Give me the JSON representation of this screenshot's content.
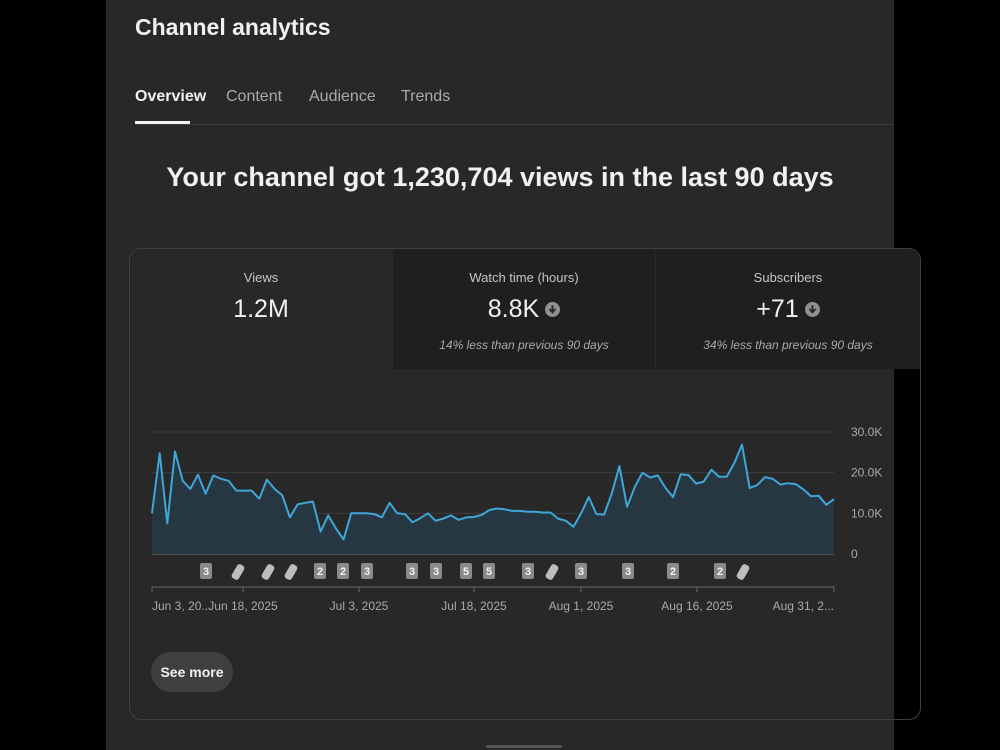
{
  "page": {
    "title": "Channel analytics"
  },
  "tabs": [
    {
      "label": "Overview",
      "active": true
    },
    {
      "label": "Content",
      "active": false
    },
    {
      "label": "Audience",
      "active": false
    },
    {
      "label": "Trends",
      "active": false
    }
  ],
  "headline": "Your channel got 1,230,704 views in the last 90 days",
  "metrics": [
    {
      "label": "Views",
      "value": "1.2M",
      "note": "",
      "trend": "none"
    },
    {
      "label": "Watch time (hours)",
      "value": "8.8K",
      "note": "14% less than previous 90 days",
      "trend": "down"
    },
    {
      "label": "Subscribers",
      "value": "+71",
      "note": "34% less than previous 90 days",
      "trend": "down"
    }
  ],
  "colors": {
    "line": "#3ea6d9",
    "area": "#263742",
    "background": "#282828"
  },
  "chart_data": {
    "type": "area",
    "title": "",
    "ylabel": "",
    "ylim": [
      0,
      30000
    ],
    "y_ticks": [
      0,
      10000,
      20000,
      30000
    ],
    "y_tick_labels": [
      "0",
      "10.0K",
      "20.0K",
      "30.0K"
    ],
    "x_tick_labels": [
      "Jun 3, 20...",
      "Jun 18, 2025",
      "Jul 3, 2025",
      "Jul 18, 2025",
      "Aug 1, 2025",
      "Aug 16, 2025",
      "Aug 31, 2..."
    ],
    "grid": true,
    "series": [
      {
        "values": [
          10000,
          24800,
          7500,
          25200,
          18000,
          16000,
          19500,
          14800,
          19300,
          18500,
          18000,
          15600,
          15600,
          15600,
          13600,
          18300,
          16000,
          14400,
          9000,
          12200,
          12600,
          12900,
          5500,
          9500,
          6300,
          3600,
          10000,
          10000,
          10000,
          9800,
          9000,
          12600,
          10000,
          9800,
          7800,
          8800,
          10000,
          8200,
          8700,
          9500,
          8400,
          9000,
          9100,
          9600,
          10800,
          11200,
          11000,
          10600,
          10600,
          10400,
          10400,
          10200,
          10200,
          8700,
          8200,
          6700,
          10000,
          14000,
          9800,
          9700,
          14900,
          21600,
          11600,
          16500,
          20000,
          18800,
          19300,
          16300,
          14000,
          19600,
          19400,
          17300,
          17800,
          20700,
          19000,
          19000,
          22400,
          26900,
          16200,
          17000,
          18900,
          18500,
          17100,
          17400,
          17200,
          15900,
          14200,
          14300,
          12100,
          13500
        ]
      }
    ],
    "annotations": [
      "3",
      "shorts",
      "shorts",
      "shorts",
      "2",
      "2",
      "3",
      "3",
      "3",
      "5",
      "5",
      "3",
      "shorts",
      "3",
      "3",
      "2",
      "2",
      "shorts"
    ]
  },
  "see_more_label": "See more"
}
